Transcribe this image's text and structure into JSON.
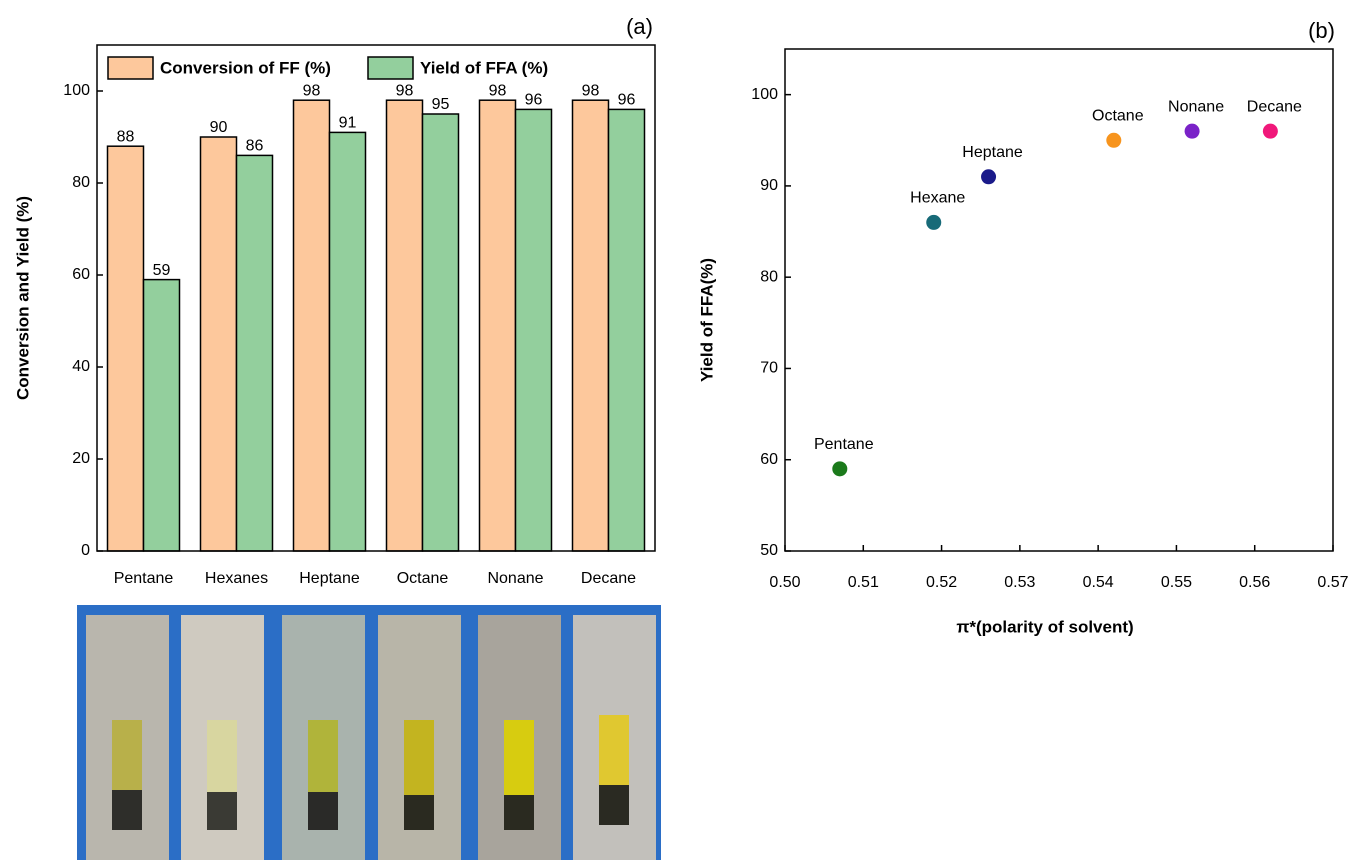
{
  "chart_data": [
    {
      "type": "bar",
      "panel": "(a)",
      "ylabel": "Conversion and Yield (%)",
      "categories": [
        "Pentane",
        "Hexanes",
        "Heptane",
        "Octane",
        "Nonane",
        "Decane"
      ],
      "series": [
        {
          "name": "Conversion of FF (%)",
          "color": "#fdc89c",
          "values": [
            88,
            90,
            98,
            98,
            98,
            98
          ]
        },
        {
          "name": "Yield of FFA (%)",
          "color": "#93cf9d",
          "values": [
            59,
            86,
            91,
            95,
            96,
            96
          ]
        }
      ],
      "ylim": [
        0,
        110
      ],
      "yticks": [
        0,
        20,
        40,
        60,
        80,
        100
      ]
    },
    {
      "type": "scatter",
      "panel": "(b)",
      "xlabel": "π*(polarity of solvent)",
      "ylabel": "Yield of FFA(%)",
      "labels": [
        "Pentane",
        "Hexane",
        "Heptane",
        "Octane",
        "Nonane",
        "Decane"
      ],
      "x": [
        0.507,
        0.519,
        0.526,
        0.542,
        0.552,
        0.562
      ],
      "values": [
        59,
        86,
        91,
        95,
        96,
        96
      ],
      "colors": [
        "#1b7a1b",
        "#176a78",
        "#1a1a8a",
        "#f7941d",
        "#7a22c8",
        "#f0187a"
      ],
      "xlim": [
        0.5,
        0.57
      ],
      "xticks": [
        {
          "value": 0.5,
          "label": "0.50"
        },
        0.51,
        0.52,
        0.53,
        0.54,
        0.55,
        0.56,
        0.57
      ],
      "ylim": [
        50,
        105
      ],
      "yticks": [
        50,
        60,
        70,
        80,
        90,
        100
      ]
    }
  ]
}
